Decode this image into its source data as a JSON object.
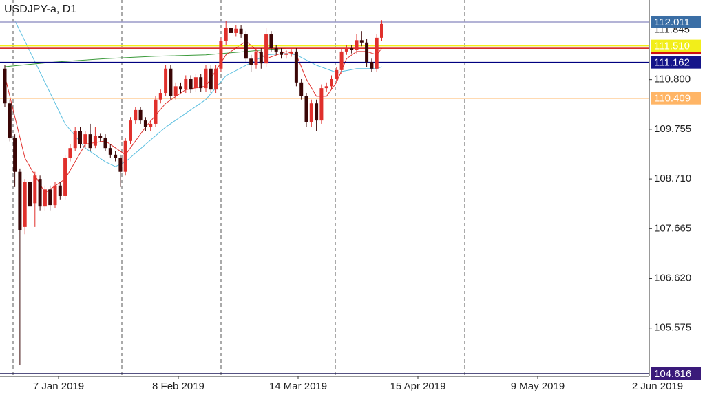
{
  "chart_data": {
    "type": "candlestick",
    "title": "USDJPY-a, D1",
    "ylim": [
      104.558,
      112.474
    ],
    "yticks": [
      111.845,
      {
        "value": 110.8,
        "label": "110.800"
      },
      109.755,
      {
        "value": 108.71,
        "label": "108.710"
      },
      107.665,
      {
        "value": 106.62,
        "label": "106.620"
      },
      105.575
    ],
    "xtick_labels": [
      "7 Jan 2019",
      "8 Feb 2019",
      "14 Mar 2019",
      "15 Apr 2019",
      "9 May 2019",
      "2 Jun 2019"
    ],
    "up_color": "#e0302c",
    "down_color": "#3a0606",
    "ohlc": [
      [
        111.03,
        111.1,
        110.22,
        110.3
      ],
      [
        110.3,
        110.38,
        109.5,
        109.58
      ],
      [
        109.58,
        109.65,
        108.54,
        108.86
      ],
      [
        108.86,
        108.93,
        104.8,
        107.63
      ],
      [
        107.7,
        108.71,
        107.55,
        108.64
      ],
      [
        108.64,
        108.71,
        108.05,
        108.13
      ],
      [
        108.2,
        108.86,
        107.7,
        108.78
      ],
      [
        108.71,
        108.78,
        108.05,
        108.13
      ],
      [
        108.13,
        108.57,
        108.05,
        108.49
      ],
      [
        108.49,
        108.57,
        108.05,
        108.16
      ],
      [
        108.16,
        108.64,
        108.1,
        108.57
      ],
      [
        108.57,
        108.64,
        108.28,
        108.35
      ],
      [
        108.35,
        109.22,
        108.28,
        109.15
      ],
      [
        109.15,
        109.44,
        109.08,
        109.36
      ],
      [
        109.36,
        109.8,
        109.3,
        109.72
      ],
      [
        109.72,
        109.8,
        109.36,
        109.44
      ],
      [
        109.44,
        109.72,
        109.36,
        109.65
      ],
      [
        109.65,
        109.87,
        109.3,
        109.36
      ],
      [
        109.41,
        109.8,
        109.36,
        109.61
      ],
      [
        109.61,
        109.66,
        109.5,
        109.58
      ],
      [
        109.58,
        109.65,
        109.3,
        109.36
      ],
      [
        109.36,
        109.44,
        109.15,
        109.22
      ],
      [
        109.22,
        109.3,
        109.08,
        109.15
      ],
      [
        109.15,
        109.22,
        108.54,
        108.86
      ],
      [
        108.86,
        109.58,
        108.78,
        109.51
      ],
      [
        109.51,
        110.01,
        109.44,
        109.94
      ],
      [
        109.94,
        110.23,
        109.87,
        110.16
      ],
      [
        110.16,
        110.23,
        109.87,
        109.94
      ],
      [
        109.94,
        110.01,
        109.72,
        109.8
      ],
      [
        109.8,
        109.94,
        109.72,
        109.87
      ],
      [
        109.87,
        110.45,
        109.8,
        110.38
      ],
      [
        110.38,
        110.59,
        110.3,
        110.52
      ],
      [
        110.52,
        111.1,
        110.45,
        111.03
      ],
      [
        111.03,
        111.1,
        110.38,
        110.45
      ],
      [
        110.45,
        110.74,
        110.38,
        110.66
      ],
      [
        110.66,
        110.74,
        110.52,
        110.59
      ],
      [
        110.59,
        110.89,
        110.52,
        110.81
      ],
      [
        110.81,
        110.89,
        110.52,
        110.59
      ],
      [
        110.62,
        110.92,
        110.55,
        110.85
      ],
      [
        110.85,
        110.92,
        110.55,
        110.62
      ],
      [
        110.62,
        111.1,
        110.55,
        111.03
      ],
      [
        111.03,
        111.1,
        110.52,
        110.59
      ],
      [
        110.59,
        111.1,
        110.52,
        111.03
      ],
      [
        111.03,
        111.68,
        110.96,
        111.61
      ],
      [
        111.61,
        112.03,
        111.53,
        111.89
      ],
      [
        111.89,
        111.97,
        111.7,
        111.78
      ],
      [
        111.78,
        111.94,
        111.7,
        111.87
      ],
      [
        111.87,
        111.94,
        111.68,
        111.75
      ],
      [
        111.75,
        111.82,
        111.17,
        111.24
      ],
      [
        111.24,
        111.32,
        110.96,
        111.1
      ],
      [
        111.1,
        111.46,
        111.03,
        111.39
      ],
      [
        111.39,
        111.46,
        111.03,
        111.14
      ],
      [
        111.14,
        111.89,
        111.07,
        111.75
      ],
      [
        111.75,
        111.82,
        111.39,
        111.46
      ],
      [
        111.46,
        111.53,
        111.32,
        111.39
      ],
      [
        111.39,
        111.46,
        111.24,
        111.32
      ],
      [
        111.32,
        111.43,
        111.24,
        111.35
      ],
      [
        111.35,
        111.46,
        111.28,
        111.39
      ],
      [
        111.39,
        111.46,
        110.66,
        110.74
      ],
      [
        110.74,
        110.81,
        110.38,
        110.45
      ],
      [
        110.45,
        110.52,
        109.8,
        109.9
      ],
      [
        109.9,
        110.38,
        109.8,
        110.3
      ],
      [
        110.3,
        110.38,
        109.72,
        109.94
      ],
      [
        109.94,
        110.7,
        109.87,
        110.62
      ],
      [
        110.62,
        110.74,
        110.55,
        110.66
      ],
      [
        110.66,
        110.89,
        110.59,
        110.81
      ],
      [
        110.81,
        111.07,
        110.74,
        111.0
      ],
      [
        111.0,
        111.46,
        110.92,
        111.39
      ],
      [
        111.39,
        111.53,
        111.32,
        111.46
      ],
      [
        111.46,
        111.53,
        111.35,
        111.43
      ],
      [
        111.43,
        111.75,
        111.35,
        111.63
      ],
      [
        111.63,
        111.82,
        111.5,
        111.58
      ],
      [
        111.58,
        111.66,
        111.07,
        111.17
      ],
      [
        111.17,
        111.24,
        110.96,
        111.03
      ],
      [
        111.03,
        111.75,
        110.96,
        111.68
      ],
      [
        111.68,
        112.05,
        111.61,
        111.97
      ]
    ],
    "lines": [
      {
        "color": "#5bbfe0",
        "x": [
          2,
          4,
          8,
          12,
          16,
          20,
          22,
          24,
          28,
          32,
          36,
          40,
          44,
          48,
          52,
          56,
          58,
          62,
          66,
          70,
          74,
          75
        ],
        "values": [
          112.04,
          111.61,
          110.74,
          109.87,
          109.36,
          109.07,
          108.97,
          109.07,
          109.44,
          109.8,
          110.09,
          110.38,
          110.88,
          111.1,
          111.32,
          111.35,
          111.32,
          111.1,
          110.95,
          111.03,
          111.03,
          111.07
        ]
      },
      {
        "color": "#3a9a3a",
        "x": [
          0,
          10,
          20,
          30,
          40,
          48,
          52,
          56
        ],
        "values": [
          111.07,
          111.17,
          111.24,
          111.29,
          111.32,
          111.39,
          111.43,
          111.46
        ]
      },
      {
        "color": "#e0302c",
        "x": [
          0,
          4,
          8,
          12,
          16,
          20,
          24,
          28,
          32,
          36,
          40,
          44,
          48,
          52,
          56,
          58,
          60,
          62,
          64,
          66,
          68,
          70,
          72,
          74,
          75
        ],
        "values": [
          110.88,
          109.15,
          108.42,
          108.71,
          109.44,
          109.51,
          109.22,
          109.8,
          110.3,
          110.59,
          110.66,
          111.32,
          111.61,
          111.24,
          111.39,
          111.32,
          110.81,
          110.45,
          110.45,
          110.74,
          111.24,
          111.39,
          111.39,
          111.32,
          111.46
        ]
      }
    ],
    "levels": [
      {
        "value": 112.011,
        "label": "112.011",
        "color": "#9a9ac8",
        "box_color": "#3a6ea5"
      },
      {
        "value": 111.46,
        "color": "#d01010",
        "box_color": "#d01010"
      },
      {
        "value": 111.51,
        "label": "111.510",
        "color": "#f2ee1a",
        "box_color": "#f2ee1a"
      },
      {
        "value": 111.162,
        "label": "111.162",
        "color": "#000080",
        "box_color": "#14148a"
      },
      {
        "value": 110.409,
        "label": "110.409",
        "color": "#ffb566",
        "box_color": "#ffb566"
      },
      {
        "value": 104.616,
        "label": "104.616",
        "color": "#1e1a5a",
        "box_color": "#3a1a7a"
      }
    ]
  }
}
